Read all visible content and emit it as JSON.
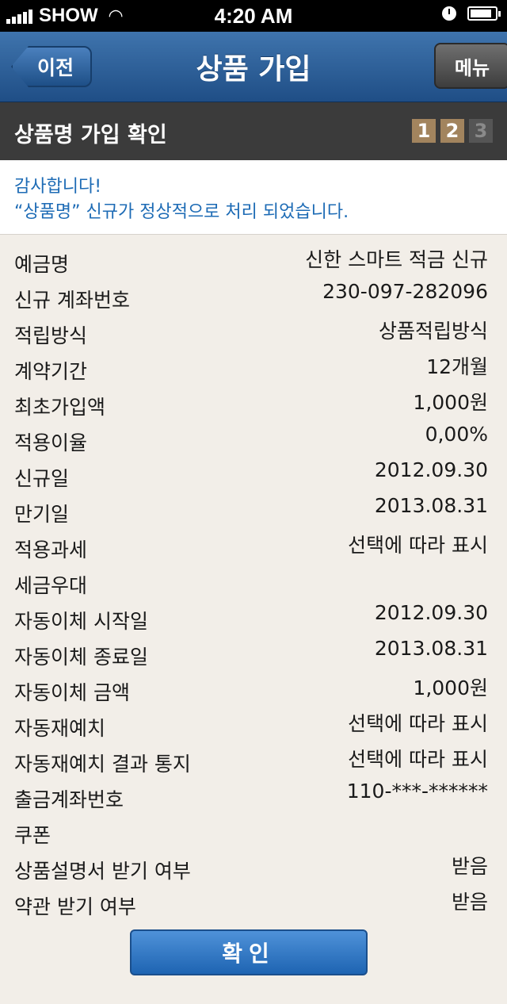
{
  "status_bar": {
    "carrier": "SHOW",
    "time": "4:20 AM"
  },
  "nav": {
    "back_label": "이전",
    "title": "상품 가입",
    "menu_label": "메뉴"
  },
  "section": {
    "title": "상품명 가입 확인",
    "steps": [
      "1",
      "2",
      "3"
    ],
    "current_step": 2
  },
  "notice": {
    "line1": "감사합니다!",
    "line2": "“상품명” 신규가 정상적으로 처리 되었습니다."
  },
  "details": [
    {
      "label": "예금명",
      "value": "신한 스마트 적금 신규"
    },
    {
      "label": "신규 계좌번호",
      "value": "230-097-282096"
    },
    {
      "label": "적립방식",
      "value": "상품적립방식"
    },
    {
      "label": "계약기간",
      "value": "12개월"
    },
    {
      "label": "최초가입액",
      "value": "1,000원"
    },
    {
      "label": "적용이율",
      "value": "0,00%"
    },
    {
      "label": "신규일",
      "value": "2012.09.30"
    },
    {
      "label": "만기일",
      "value": "2013.08.31"
    },
    {
      "label": "적용과세",
      "value": "선택에 따라 표시"
    },
    {
      "label": "세금우대",
      "value": ""
    },
    {
      "label": "자동이체 시작일",
      "value": "2012.09.30"
    },
    {
      "label": "자동이체 종료일",
      "value": "2013.08.31"
    },
    {
      "label": "자동이체 금액",
      "value": "1,000원"
    },
    {
      "label": "자동재예치",
      "value": "선택에 따라 표시"
    },
    {
      "label": "자동재예치 결과 통지",
      "value": "선택에 따라 표시"
    },
    {
      "label": "출금계좌번호",
      "value": "110-***-******"
    },
    {
      "label": "쿠폰",
      "value": ""
    },
    {
      "label": "상품설명서 받기 여부",
      "value": "받음"
    },
    {
      "label": "약관 받기 여부",
      "value": "받음"
    }
  ],
  "confirm_label": "확인",
  "colors": {
    "nav_blue": "#2a5d98",
    "section_dark": "#3b3b3b",
    "step_done": "#a2845e",
    "notice_text": "#1d6bb5",
    "background": "#f2eee8"
  }
}
